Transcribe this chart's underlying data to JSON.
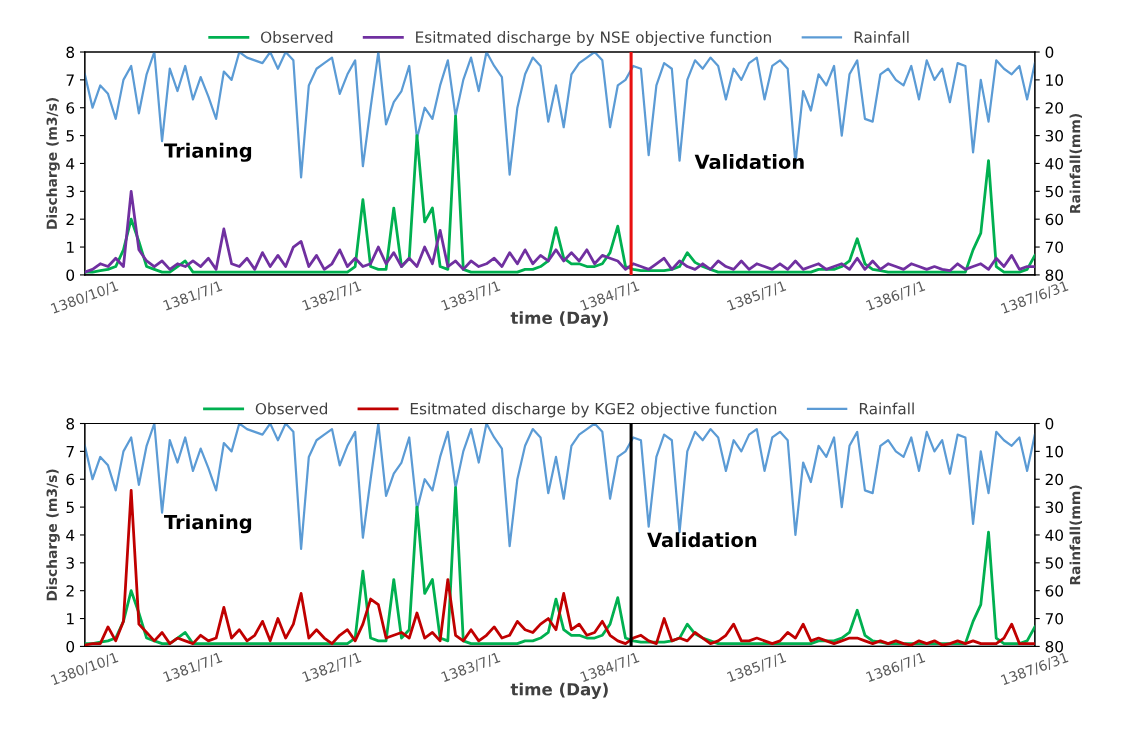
{
  "chart_data": [
    {
      "type": "line",
      "xlabel": "time (Day)",
      "ylabel": "Discharge (m3/s)",
      "y2label": "Rainfall(mm)",
      "categories": [
        "1380/10/1",
        null,
        null,
        null,
        null,
        null,
        null,
        null,
        null,
        null,
        null,
        null,
        null,
        null,
        "1381/7/1",
        null,
        null,
        null,
        null,
        null,
        null,
        null,
        null,
        null,
        null,
        null,
        null,
        null,
        null,
        null,
        null,
        null,
        "1382/7/1",
        null,
        null,
        null,
        null,
        null,
        null,
        null,
        null,
        null,
        null,
        null,
        null,
        null,
        null,
        null,
        null,
        null,
        "1383/7/1",
        null,
        null,
        null,
        null,
        null,
        null,
        null,
        null,
        null,
        null,
        null,
        null,
        null,
        null,
        null,
        null,
        null,
        "1384/7/1",
        null,
        null,
        null,
        null,
        null,
        null,
        null,
        null,
        null,
        null,
        null,
        null,
        null,
        null,
        null,
        null,
        null,
        null,
        "1385/7/1",
        null,
        null,
        null,
        null,
        null,
        null,
        null,
        null,
        null,
        null,
        null,
        null,
        null,
        null,
        null,
        null,
        null,
        "1386/7/1",
        null,
        null,
        null,
        null,
        null,
        null,
        null,
        null,
        null,
        null,
        null,
        null,
        null,
        null,
        null,
        null,
        null,
        "1387/6/31"
      ],
      "ylim": [
        0,
        8
      ],
      "yticks": [
        0,
        1,
        2,
        3,
        4,
        5,
        6,
        7,
        8
      ],
      "y2lim": [
        80,
        0
      ],
      "y2ticks": [
        0,
        10,
        20,
        30,
        40,
        50,
        60,
        70,
        80
      ],
      "legend": "top",
      "grid": false,
      "marker": "none",
      "line_style": "solid",
      "annotations": [
        "Trianing",
        "Validation"
      ],
      "series": [
        {
          "name": "Observed",
          "color": "#00b050",
          "values": [
            0.1,
            0.1,
            0.15,
            0.2,
            0.3,
            0.9,
            2.0,
            1.2,
            0.3,
            0.2,
            0.1,
            0.1,
            0.3,
            0.5,
            0.1,
            0.1,
            0.1,
            0.1,
            0.1,
            0.1,
            0.1,
            0.1,
            0.1,
            0.1,
            0.1,
            0.1,
            0.1,
            0.1,
            0.1,
            0.1,
            0.1,
            0.1,
            0.1,
            0.1,
            0.1,
            0.3,
            2.7,
            0.3,
            0.2,
            0.2,
            2.4,
            0.3,
            0.6,
            5.0,
            1.9,
            2.4,
            0.3,
            0.2,
            5.7,
            0.2,
            0.1,
            0.1,
            0.1,
            0.1,
            0.1,
            0.1,
            0.1,
            0.2,
            0.2,
            0.3,
            0.5,
            1.7,
            0.6,
            0.4,
            0.4,
            0.3,
            0.3,
            0.4,
            0.8,
            1.75,
            0.3,
            0.2,
            0.15,
            0.15,
            0.15,
            0.15,
            0.2,
            0.3,
            0.8,
            0.45,
            0.3,
            0.2,
            0.1,
            0.1,
            0.1,
            0.1,
            0.1,
            0.1,
            0.1,
            0.1,
            0.1,
            0.1,
            0.1,
            0.1,
            0.1,
            0.2,
            0.2,
            0.2,
            0.3,
            0.5,
            1.3,
            0.4,
            0.2,
            0.15,
            0.1,
            0.1,
            0.1,
            0.1,
            0.1,
            0.1,
            0.1,
            0.1,
            0.1,
            0.1,
            0.1,
            0.9,
            1.5,
            4.1,
            0.3,
            0.1,
            0.1,
            0.1,
            0.2,
            0.7
          ]
        },
        {
          "name": "Esitmated discharge by NSE objective function",
          "color": "#7030a0",
          "values": [
            0.1,
            0.2,
            0.4,
            0.3,
            0.6,
            0.3,
            3.0,
            0.9,
            0.5,
            0.3,
            0.5,
            0.2,
            0.4,
            0.3,
            0.5,
            0.3,
            0.6,
            0.2,
            1.65,
            0.4,
            0.3,
            0.6,
            0.2,
            0.8,
            0.3,
            0.7,
            0.3,
            1.0,
            1.2,
            0.3,
            0.7,
            0.2,
            0.4,
            0.9,
            0.3,
            0.6,
            0.3,
            0.4,
            1.0,
            0.4,
            0.8,
            0.3,
            0.6,
            0.3,
            1.0,
            0.4,
            1.6,
            0.3,
            0.5,
            0.2,
            0.5,
            0.3,
            0.4,
            0.6,
            0.3,
            0.8,
            0.4,
            0.9,
            0.4,
            0.7,
            0.5,
            0.9,
            0.5,
            0.8,
            0.5,
            0.9,
            0.4,
            0.7,
            0.6,
            0.5,
            0.2,
            0.4,
            0.3,
            0.2,
            0.4,
            0.6,
            0.2,
            0.5,
            0.3,
            0.2,
            0.4,
            0.2,
            0.5,
            0.3,
            0.2,
            0.5,
            0.2,
            0.4,
            0.3,
            0.2,
            0.4,
            0.2,
            0.5,
            0.2,
            0.3,
            0.4,
            0.2,
            0.3,
            0.4,
            0.2,
            0.6,
            0.2,
            0.5,
            0.2,
            0.4,
            0.3,
            0.2,
            0.4,
            0.3,
            0.2,
            0.3,
            0.2,
            0.15,
            0.4,
            0.2,
            0.3,
            0.4,
            0.2,
            0.6,
            0.3,
            0.7,
            0.2,
            0.3,
            0.3
          ]
        },
        {
          "name": "Rainfall",
          "color": "#5b9bd5",
          "axis": "y2",
          "values": [
            8,
            20,
            12,
            15,
            24,
            10,
            5,
            22,
            8,
            0,
            32,
            6,
            14,
            5,
            17,
            9,
            16,
            24,
            7,
            10,
            0,
            2,
            3,
            4,
            0,
            6,
            0,
            3,
            45,
            12,
            6,
            4,
            2,
            15,
            8,
            3,
            41,
            20,
            0,
            26,
            18,
            14,
            5,
            31,
            20,
            24,
            12,
            3,
            23,
            10,
            2,
            14,
            0,
            5,
            9,
            44,
            20,
            8,
            2,
            5,
            25,
            12,
            27,
            8,
            4,
            2,
            0,
            3,
            27,
            12,
            10,
            5,
            6,
            37,
            12,
            4,
            6,
            39,
            10,
            3,
            6,
            2,
            5,
            17,
            6,
            10,
            4,
            2,
            17,
            5,
            3,
            6,
            40,
            14,
            21,
            8,
            12,
            5,
            30,
            8,
            3,
            24,
            25,
            8,
            6,
            10,
            12,
            5,
            17,
            3,
            10,
            6,
            18,
            4,
            5,
            36,
            10,
            25,
            3,
            6,
            8,
            5,
            17,
            4
          ]
        }
      ]
    },
    {
      "type": "line",
      "xlabel": "time (Day)",
      "ylabel": "Discharge (m3/s)",
      "y2label": "Rainfall(mm)",
      "categories": [
        "1380/10/1",
        null,
        null,
        null,
        null,
        null,
        null,
        null,
        null,
        null,
        null,
        null,
        null,
        null,
        "1381/7/1",
        null,
        null,
        null,
        null,
        null,
        null,
        null,
        null,
        null,
        null,
        null,
        null,
        null,
        null,
        null,
        null,
        null,
        "1382/7/1",
        null,
        null,
        null,
        null,
        null,
        null,
        null,
        null,
        null,
        null,
        null,
        null,
        null,
        null,
        null,
        null,
        null,
        "1383/7/1",
        null,
        null,
        null,
        null,
        null,
        null,
        null,
        null,
        null,
        null,
        null,
        null,
        null,
        null,
        null,
        null,
        null,
        "1384/7/1",
        null,
        null,
        null,
        null,
        null,
        null,
        null,
        null,
        null,
        null,
        null,
        null,
        null,
        null,
        null,
        null,
        null,
        null,
        "1385/7/1",
        null,
        null,
        null,
        null,
        null,
        null,
        null,
        null,
        null,
        null,
        null,
        null,
        null,
        null,
        null,
        null,
        null,
        "1386/7/1",
        null,
        null,
        null,
        null,
        null,
        null,
        null,
        null,
        null,
        null,
        null,
        null,
        null,
        null,
        null,
        null,
        null,
        "1387/6/31"
      ],
      "ylim": [
        0,
        8
      ],
      "yticks": [
        0,
        1,
        2,
        3,
        4,
        5,
        6,
        7,
        8
      ],
      "y2lim": [
        80,
        0
      ],
      "y2ticks": [
        0,
        10,
        20,
        30,
        40,
        50,
        60,
        70,
        80
      ],
      "legend": "top",
      "grid": false,
      "marker": "none",
      "line_style": "solid",
      "annotations": [
        "Trianing",
        "Validation"
      ],
      "series": [
        {
          "name": "Observed",
          "color": "#00b050",
          "values": [
            0.1,
            0.1,
            0.15,
            0.2,
            0.3,
            0.9,
            2.0,
            1.2,
            0.3,
            0.2,
            0.1,
            0.1,
            0.3,
            0.5,
            0.1,
            0.1,
            0.1,
            0.1,
            0.1,
            0.1,
            0.1,
            0.1,
            0.1,
            0.1,
            0.1,
            0.1,
            0.1,
            0.1,
            0.1,
            0.1,
            0.1,
            0.1,
            0.1,
            0.1,
            0.1,
            0.3,
            2.7,
            0.3,
            0.2,
            0.2,
            2.4,
            0.3,
            0.6,
            5.0,
            1.9,
            2.4,
            0.3,
            0.2,
            5.7,
            0.2,
            0.1,
            0.1,
            0.1,
            0.1,
            0.1,
            0.1,
            0.1,
            0.2,
            0.2,
            0.3,
            0.5,
            1.7,
            0.6,
            0.4,
            0.4,
            0.3,
            0.3,
            0.4,
            0.8,
            1.75,
            0.3,
            0.2,
            0.15,
            0.15,
            0.15,
            0.15,
            0.2,
            0.3,
            0.8,
            0.45,
            0.3,
            0.2,
            0.1,
            0.1,
            0.1,
            0.1,
            0.1,
            0.1,
            0.1,
            0.1,
            0.1,
            0.1,
            0.1,
            0.1,
            0.1,
            0.2,
            0.2,
            0.2,
            0.3,
            0.5,
            1.3,
            0.4,
            0.2,
            0.15,
            0.1,
            0.1,
            0.1,
            0.1,
            0.1,
            0.1,
            0.1,
            0.1,
            0.1,
            0.1,
            0.1,
            0.9,
            1.5,
            4.1,
            0.3,
            0.1,
            0.1,
            0.1,
            0.2,
            0.7
          ]
        },
        {
          "name": "Esitmated discharge by KGE2 objective function",
          "color": "#c00000",
          "values": [
            0.05,
            0.1,
            0.1,
            0.7,
            0.2,
            0.9,
            5.6,
            0.8,
            0.5,
            0.2,
            0.5,
            0.1,
            0.3,
            0.2,
            0.1,
            0.4,
            0.2,
            0.3,
            1.4,
            0.3,
            0.6,
            0.2,
            0.4,
            0.9,
            0.2,
            1.0,
            0.3,
            0.8,
            1.9,
            0.3,
            0.6,
            0.3,
            0.1,
            0.4,
            0.6,
            0.2,
            0.8,
            1.7,
            1.5,
            0.3,
            0.4,
            0.5,
            0.3,
            1.2,
            0.3,
            0.5,
            0.2,
            2.4,
            0.4,
            0.2,
            0.6,
            0.2,
            0.4,
            0.7,
            0.3,
            0.4,
            0.9,
            0.6,
            0.5,
            0.8,
            1.0,
            0.6,
            1.9,
            0.6,
            0.8,
            0.4,
            0.5,
            0.9,
            0.4,
            0.2,
            0.1,
            0.3,
            0.4,
            0.2,
            0.1,
            1.0,
            0.2,
            0.3,
            0.2,
            0.5,
            0.3,
            0.1,
            0.2,
            0.4,
            0.8,
            0.2,
            0.2,
            0.3,
            0.2,
            0.1,
            0.2,
            0.5,
            0.3,
            0.8,
            0.2,
            0.3,
            0.2,
            0.1,
            0.2,
            0.3,
            0.3,
            0.2,
            0.1,
            0.2,
            0.1,
            0.2,
            0.1,
            0.05,
            0.2,
            0.1,
            0.2,
            0.05,
            0.1,
            0.2,
            0.1,
            0.2,
            0.1,
            0.1,
            0.1,
            0.3,
            0.8,
            0.1,
            0.1,
            0.1
          ]
        },
        {
          "name": "Rainfall",
          "color": "#5b9bd5",
          "axis": "y2",
          "values": [
            8,
            20,
            12,
            15,
            24,
            10,
            5,
            22,
            8,
            0,
            32,
            6,
            14,
            5,
            17,
            9,
            16,
            24,
            7,
            10,
            0,
            2,
            3,
            4,
            0,
            6,
            0,
            3,
            45,
            12,
            6,
            4,
            2,
            15,
            8,
            3,
            41,
            20,
            0,
            26,
            18,
            14,
            5,
            31,
            20,
            24,
            12,
            3,
            23,
            10,
            2,
            14,
            0,
            5,
            9,
            44,
            20,
            8,
            2,
            5,
            25,
            12,
            27,
            8,
            4,
            2,
            0,
            3,
            27,
            12,
            10,
            5,
            6,
            37,
            12,
            4,
            6,
            39,
            10,
            3,
            6,
            2,
            5,
            17,
            6,
            10,
            4,
            2,
            17,
            5,
            3,
            6,
            40,
            14,
            21,
            8,
            12,
            5,
            30,
            8,
            3,
            24,
            25,
            8,
            6,
            10,
            12,
            5,
            17,
            3,
            10,
            6,
            18,
            4,
            5,
            36,
            10,
            25,
            3,
            6,
            8,
            5,
            17,
            4
          ]
        }
      ]
    }
  ]
}
